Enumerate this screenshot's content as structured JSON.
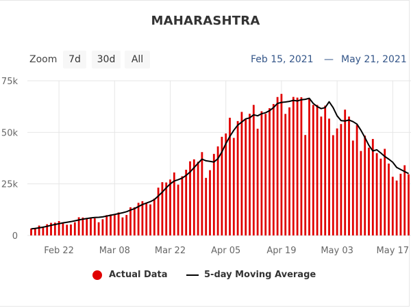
{
  "header": {
    "title": "MAHARASHTRA"
  },
  "range_selector": {
    "label": "Zoom",
    "buttons": [
      "7d",
      "30d",
      "All"
    ],
    "from": "Feb 15, 2021",
    "separator": "—",
    "to": "May 21, 2021"
  },
  "colors": {
    "bar": "#e00000",
    "line": "#000000",
    "grid": "#e6e6e6"
  },
  "chart_data": {
    "type": "bar",
    "x_start": "2021-02-15",
    "x_end": "2021-05-21",
    "x_ticks": [
      "Feb 22",
      "Mar 08",
      "Mar 22",
      "Apr 05",
      "Apr 19",
      "May 03",
      "May 17"
    ],
    "y_ticks": [
      "0",
      "25k",
      "50k",
      "75k"
    ],
    "ylim": [
      0,
      75000
    ],
    "grid": true,
    "legend_position": "bottom",
    "series": [
      {
        "name": "Actual Data",
        "type": "bar",
        "values": [
          3365,
          3663,
          4787,
          4092,
          5427,
          6112,
          6218,
          6971,
          6281,
          5210,
          5324,
          6397,
          8807,
          8702,
          8333,
          8623,
          8293,
          6397,
          7863,
          9855,
          10187,
          10216,
          11141,
          8744,
          9927,
          13659,
          13659,
          15817,
          16620,
          15602,
          15051,
          17864,
          23179,
          25833,
          25681,
          27126,
          30535,
          24645,
          28699,
          31855,
          35952,
          36902,
          35726,
          40414,
          27918,
          31643,
          39544,
          43183,
          47827,
          49447,
          57074,
          47288,
          55469,
          59907,
          56286,
          58993,
          63294,
          51751,
          60212,
          58952,
          61695,
          63729,
          67123,
          68631,
          58924,
          62097,
          67160,
          66836,
          67013,
          48700,
          66358,
          63309,
          63282,
          57640,
          62919,
          56647,
          48621,
          51880,
          54022,
          61000,
          57640,
          46000,
          53605,
          40956,
          48401,
          42582,
          46781,
          39923,
          37236,
          42000,
          34848,
          28438,
          26616,
          29911,
          34031,
          29644
        ],
        "color": "#e00000"
      },
      {
        "name": "5-day Moving Average",
        "type": "line",
        "values": [
          3200,
          3400,
          3700,
          4000,
          4400,
          4900,
          5300,
          5700,
          6100,
          6400,
          6700,
          7100,
          7500,
          7900,
          8200,
          8500,
          8700,
          8800,
          9000,
          9400,
          9800,
          10200,
          10600,
          11000,
          11500,
          12300,
          13000,
          14000,
          15000,
          15700,
          16400,
          17400,
          19100,
          21000,
          23100,
          25000,
          26400,
          27000,
          27800,
          29100,
          30800,
          32900,
          35000,
          37000,
          36200,
          35900,
          35600,
          37200,
          40500,
          44500,
          48000,
          51000,
          53500,
          55000,
          56500,
          57000,
          58500,
          58000,
          59000,
          59500,
          60500,
          62000,
          64000,
          64500,
          64700,
          65000,
          65500,
          65200,
          65800,
          66000,
          66500,
          64000,
          62500,
          61500,
          62000,
          64800,
          62000,
          58000,
          55700,
          55500,
          56000,
          55200,
          54000,
          51000,
          47500,
          43700,
          41000,
          41500,
          40000,
          38300,
          37000,
          35500,
          33000,
          32000,
          31000,
          30000
        ],
        "color": "#000000"
      }
    ]
  }
}
